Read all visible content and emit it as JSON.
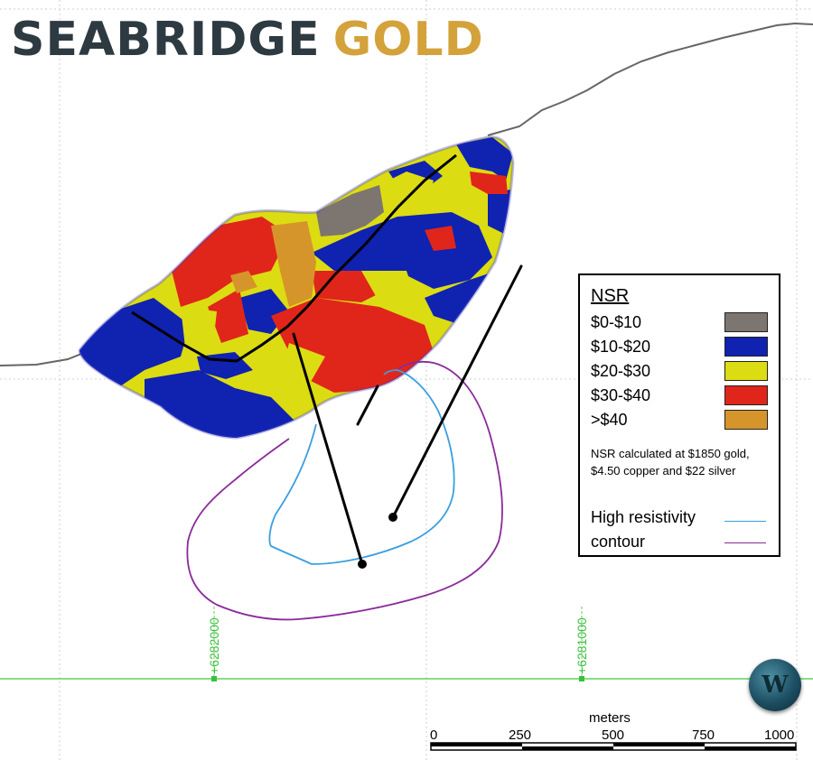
{
  "logo": {
    "part1": "SEABRIDGE",
    "part2": "GOLD"
  },
  "legend": {
    "title": "NSR",
    "classes": [
      {
        "label": "$0-$10",
        "color": "#7d7570"
      },
      {
        "label": "$10-$20",
        "color": "#1022b0"
      },
      {
        "label": "$20-$30",
        "color": "#dcdc12"
      },
      {
        "label": "$30-$40",
        "color": "#e0261a"
      },
      {
        "label": ">$40",
        "color": "#d6952a"
      }
    ],
    "note": "NSR calculated at $1850 gold, $4.50 copper and $22 silver",
    "contour_label_1": "High resistivity",
    "contour_label_2": "contour",
    "contour_colors": {
      "high_resistivity": "#3a9fe0",
      "contour": "#8a2a9a"
    }
  },
  "grid": {
    "northing_1": "+6282000",
    "northing_2": "+6281000"
  },
  "scale_bar": {
    "unit": "meters",
    "ticks": [
      "0",
      "250",
      "500",
      "750",
      "1000"
    ]
  },
  "badge": {
    "letter": "W"
  },
  "colors": {
    "topography": "#666666",
    "grid_line": "#5cd65c",
    "drillhole": "#000000"
  }
}
